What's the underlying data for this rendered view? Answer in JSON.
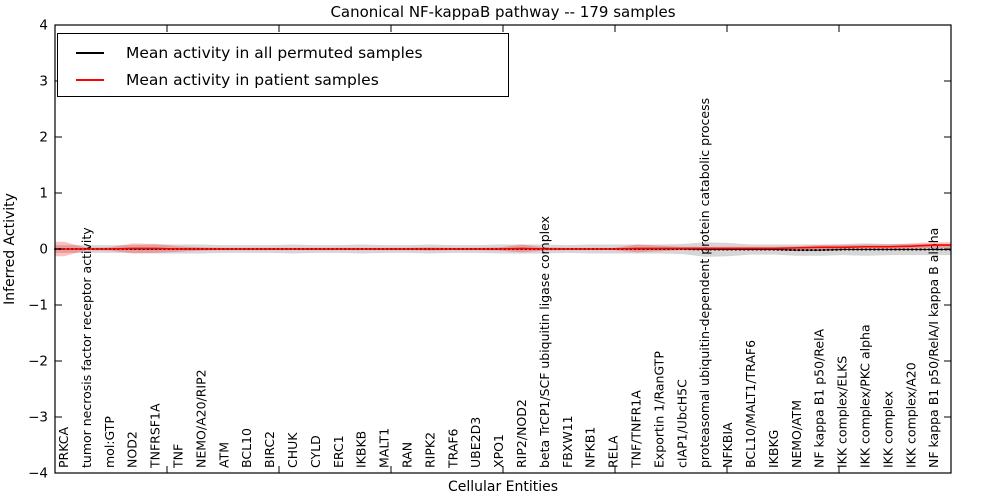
{
  "chart": {
    "title": "Canonical NF-kappaB pathway -- 179 samples"
  },
  "axes": {
    "ylabel": "Inferred Activity",
    "xlabel": "Cellular Entities",
    "yticks": [
      "4",
      "3",
      "2",
      "1",
      "0",
      "−1",
      "−2",
      "−3",
      "−4"
    ]
  },
  "legend": {
    "items": [
      {
        "label": "Mean activity in all permuted samples",
        "color": "#000000"
      },
      {
        "label": "Mean activity in patient samples",
        "color": "#ff0000"
      }
    ]
  },
  "chart_data": {
    "type": "line",
    "title": "Canonical NF-kappaB pathway -- 179 samples",
    "xlabel": "Cellular Entities",
    "ylabel": "Inferred Activity",
    "ylim": [
      -4,
      4
    ],
    "grid": false,
    "legend_position": "upper left",
    "categories": [
      "PRKCA",
      "tumor necrosis factor receptor activity",
      "mol:GTP",
      "NOD2",
      "TNFRSF1A",
      "TNF",
      "NEMO/A20/RIP2",
      "ATM",
      "BCL10",
      "BIRC2",
      "CHUK",
      "CYLD",
      "ERC1",
      "IKBKB",
      "MALT1",
      "RAN",
      "RIPK2",
      "TRAF6",
      "UBE2D3",
      "XPO1",
      "RIP2/NOD2",
      "beta TrCP1/SCF ubiquitin ligase complex",
      "FBXW11",
      "NFKB1",
      "RELA",
      "TNF/TNFR1A",
      "Exportin 1/RanGTP",
      "cIAP1/UbcH5C",
      "proteasomal ubiquitin-dependent protein catabolic process",
      "NFKBIA",
      "BCL10/MALT1/TRAF6",
      "IKBKG",
      "NEMO/ATM",
      "NF kappa B1 p50/RelA",
      "IKK complex/ELKS",
      "IKK complex/PKC alpha",
      "IKK complex",
      "IKK complex/A20",
      "NF kappa B1 p50/RelA/I kappa B alpha"
    ],
    "series": [
      {
        "name": "Mean activity in all permuted samples",
        "color": "#000000",
        "line_style": "dotted",
        "band_color": "rgba(0,0,0,0.16)",
        "values": [
          0,
          0,
          0,
          0,
          0,
          0,
          0,
          0,
          0,
          0,
          0,
          0,
          0,
          0,
          0,
          0,
          0,
          0,
          0,
          0,
          0,
          0,
          0,
          0,
          0,
          0,
          0,
          0,
          -0.01,
          -0.01,
          -0.01,
          -0.01,
          -0.02,
          -0.02,
          -0.01,
          -0.01,
          -0.01,
          -0.01,
          -0.01
        ],
        "band_halfwidth": [
          0.07,
          0.07,
          0.07,
          0.07,
          0.08,
          0.08,
          0.08,
          0.07,
          0.07,
          0.07,
          0.08,
          0.07,
          0.07,
          0.08,
          0.07,
          0.07,
          0.08,
          0.07,
          0.07,
          0.08,
          0.08,
          0.08,
          0.07,
          0.08,
          0.08,
          0.08,
          0.08,
          0.09,
          0.13,
          0.12,
          0.09,
          0.09,
          0.1,
          0.1,
          0.1,
          0.11,
          0.1,
          0.1,
          0.1
        ]
      },
      {
        "name": "Mean activity in patient samples",
        "color": "#ff0000",
        "line_style": "solid",
        "band_color": "rgba(255,0,0,0.25)",
        "values": [
          0,
          0,
          0,
          0.01,
          0.01,
          0,
          0,
          0,
          0,
          0,
          0,
          0,
          0,
          0,
          0,
          0,
          0,
          0,
          0,
          0,
          0.01,
          0,
          0,
          0,
          0,
          0.01,
          0.01,
          0.01,
          0.01,
          0.01,
          0.01,
          0.01,
          0.02,
          0.03,
          0.03,
          0.04,
          0.04,
          0.05,
          0.07
        ],
        "band_halfwidth": [
          0.13,
          0.02,
          0.03,
          0.09,
          0.08,
          0.05,
          0.03,
          0.02,
          0.02,
          0.02,
          0.02,
          0.02,
          0.02,
          0.02,
          0.02,
          0.02,
          0.03,
          0.02,
          0.02,
          0.03,
          0.07,
          0.03,
          0.02,
          0.02,
          0.02,
          0.07,
          0.05,
          0.03,
          0.03,
          0.03,
          0.03,
          0.03,
          0.03,
          0.04,
          0.04,
          0.04,
          0.04,
          0.05,
          0.05
        ]
      }
    ]
  }
}
